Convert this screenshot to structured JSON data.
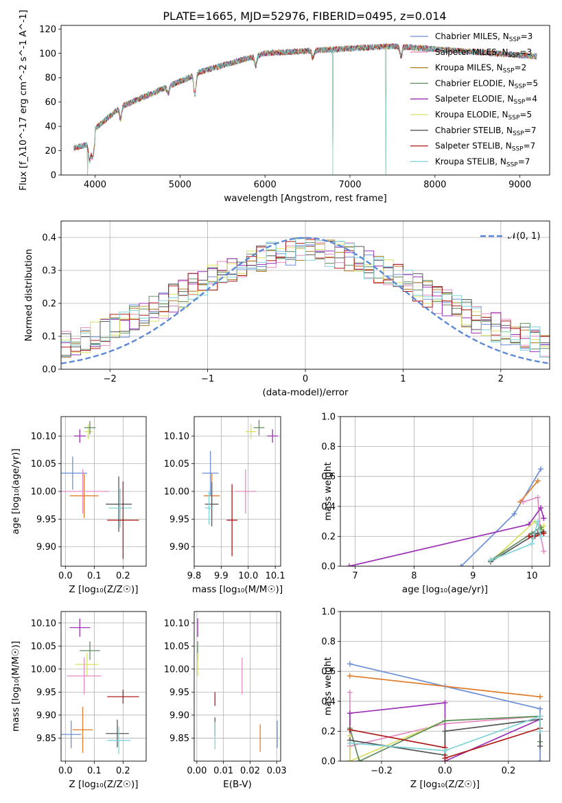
{
  "title": "PLATE=1665, MJD=52976, FIBERID=0495, z=0.014",
  "colors": {
    "blue": "#6a8fd8",
    "orange": "#e07b28",
    "pink": "#e58ac0",
    "olive": "#b0b030",
    "purple": "#9a2eb5",
    "yellowgreen": "#c6e040",
    "green": "#5f8c5f",
    "darkred": "#b01818",
    "cyan": "#7dd3d8",
    "gray": "#555555"
  },
  "models": [
    {
      "name": "Chabrier MILES",
      "nssp": "3",
      "color": "#6a8fd8"
    },
    {
      "name": "Salpeter MILES",
      "nssp": "3",
      "color": "#e58ac0"
    },
    {
      "name": "Kroupa MILES",
      "nssp": "2",
      "color": "#b07a20"
    },
    {
      "name": "Chabrier ELODIE",
      "nssp": "5",
      "color": "#5f8c5f"
    },
    {
      "name": "Salpeter ELODIE",
      "nssp": "4",
      "color": "#9a2eb5"
    },
    {
      "name": "Kroupa ELODIE",
      "nssp": "5",
      "color": "#d8e060"
    },
    {
      "name": "Chabrier STELIB",
      "nssp": "7",
      "color": "#555555"
    },
    {
      "name": "Salpeter STELIB",
      "nssp": "7",
      "color": "#b01818"
    },
    {
      "name": "Kroupa STELIB",
      "nssp": "7",
      "color": "#7dd3d8"
    }
  ],
  "chart_data": [
    {
      "id": "spectrum",
      "type": "line",
      "xlabel": "wavelength [Angstrom, rest frame]",
      "ylabel": "Flux [f_λ10^-17 erg cm^-2 s^-1 A^-1]",
      "xlim": [
        3600,
        9350
      ],
      "ylim": [
        0,
        123
      ],
      "xticks": [
        4000,
        5000,
        6000,
        7000,
        8000,
        9000
      ],
      "yticks": [
        0,
        20,
        40,
        60,
        80,
        100,
        120
      ],
      "x_start": 3750,
      "x_end": 9200,
      "dropouts": [
        3910,
        6800,
        7420
      ],
      "legend_loc": "upper right"
    },
    {
      "id": "residuals",
      "type": "histogram",
      "xlabel": "(data-model)/error",
      "ylabel": "Normed distribution",
      "xlim": [
        -2.5,
        2.5
      ],
      "ylim": [
        0,
        0.45
      ],
      "xticks": [
        -2,
        -1,
        0,
        1,
        2
      ],
      "yticks": [
        0.0,
        0.1,
        0.2,
        0.3,
        0.4
      ],
      "reference": {
        "label": "𝒩(0, 1)",
        "mean": 0,
        "sigma": 1,
        "peak": 0.399
      },
      "grid": true,
      "legend_loc": "upper right"
    },
    {
      "id": "age_vs_Z",
      "type": "errorbar",
      "xlabel": "Z [log₁₀(Z/Z☉)]",
      "ylabel": "age  [log₁₀(age/yr)]",
      "xlim": [
        -0.015,
        0.28
      ],
      "ylim": [
        9.865,
        10.135
      ],
      "xticks": [
        0.0,
        0.1,
        0.2
      ],
      "yticks": [
        9.9,
        9.95,
        10.0,
        10.05,
        10.1
      ],
      "points": [
        {
          "color": "#9a2eb5",
          "x": 0.05,
          "xerr": 0.02,
          "y": 10.1,
          "yerr": 0.012
        },
        {
          "color": "#d8e060",
          "x": 0.08,
          "xerr": 0.015,
          "y": 10.108,
          "yerr": 0.014
        },
        {
          "color": "#5f8c5f",
          "x": 0.085,
          "xerr": 0.02,
          "y": 10.115,
          "yerr": 0.012
        },
        {
          "color": "#6a8fd8",
          "x": 0.025,
          "xerr": 0.05,
          "y": 10.033,
          "yerr": 0.03
        },
        {
          "color": "#e07b28",
          "x": 0.065,
          "xerr": 0.05,
          "y": 9.992,
          "yerr": 0.04
        },
        {
          "color": "#e58ac0",
          "x": 0.06,
          "xerr": 0.09,
          "y": 10.0,
          "yerr": 0.04
        },
        {
          "color": "#555555",
          "x": 0.185,
          "xerr": 0.045,
          "y": 9.977,
          "yerr": 0.05
        },
        {
          "color": "#7dd3d8",
          "x": 0.19,
          "xerr": 0.04,
          "y": 9.97,
          "yerr": 0.035
        },
        {
          "color": "#b01818",
          "x": 0.2,
          "xerr": 0.055,
          "y": 9.948,
          "yerr": 0.07
        }
      ]
    },
    {
      "id": "age_vs_mass",
      "type": "errorbar",
      "xlabel": "mass [log₁₀(M/M☉)]",
      "xlim": [
        9.8,
        10.12
      ],
      "ylim": [
        9.865,
        10.135
      ],
      "xticks": [
        9.8,
        9.9,
        10.0,
        10.1
      ],
      "yticks": [
        9.9,
        9.95,
        10.0,
        10.05,
        10.1
      ],
      "points": [
        {
          "color": "#d8e060",
          "x": 10.01,
          "xerr": 0.02,
          "y": 10.108,
          "yerr": 0.014
        },
        {
          "color": "#5f8c5f",
          "x": 10.04,
          "xerr": 0.02,
          "y": 10.115,
          "yerr": 0.014
        },
        {
          "color": "#9a2eb5",
          "x": 10.09,
          "xerr": 0.02,
          "y": 10.1,
          "yerr": 0.012
        },
        {
          "color": "#6a8fd8",
          "x": 9.86,
          "xerr": 0.03,
          "y": 10.033,
          "yerr": 0.04
        },
        {
          "color": "#e07b28",
          "x": 9.865,
          "xerr": 0.03,
          "y": 9.992,
          "yerr": 0.04
        },
        {
          "color": "#555555",
          "x": 9.865,
          "xerr": 0.025,
          "y": 9.977,
          "yerr": 0.04
        },
        {
          "color": "#7dd3d8",
          "x": 9.855,
          "xerr": 0.015,
          "y": 9.97,
          "yerr": 0.03
        },
        {
          "color": "#e58ac0",
          "x": 9.99,
          "xerr": 0.04,
          "y": 10.0,
          "yerr": 0.04
        },
        {
          "color": "#b01818",
          "x": 9.94,
          "xerr": 0.02,
          "y": 9.948,
          "yerr": 0.065
        }
      ]
    },
    {
      "id": "massweight_vs_age",
      "type": "line",
      "xlabel": "age  [log₁₀(age/yr)]",
      "ylabel": "mass weight",
      "xlim": [
        6.75,
        10.3
      ],
      "ylim": [
        0,
        1.0
      ],
      "xticks": [
        7,
        8,
        9,
        10
      ],
      "yticks": [
        0.0,
        0.2,
        0.4,
        0.6,
        0.8,
        1.0
      ],
      "series": [
        {
          "color": "#6a8fd8",
          "x": [
            8.8,
            9.7,
            10.15
          ],
          "y": [
            0.0,
            0.35,
            0.65
          ]
        },
        {
          "color": "#e07b28",
          "x": [
            9.8,
            10.1
          ],
          "y": [
            0.43,
            0.57
          ]
        },
        {
          "color": "#e58ac0",
          "x": [
            9.85,
            10.1,
            10.15,
            10.2
          ],
          "y": [
            0.43,
            0.46,
            0.2,
            0.1
          ]
        },
        {
          "color": "#9a2eb5",
          "x": [
            6.9,
            9.95,
            10.15,
            10.2
          ],
          "y": [
            0.0,
            0.28,
            0.39,
            0.32
          ]
        },
        {
          "color": "#d8e060",
          "x": [
            9.3,
            10.05,
            10.15,
            10.2
          ],
          "y": [
            0.03,
            0.3,
            0.25,
            0.27
          ]
        },
        {
          "color": "#5f8c5f",
          "x": [
            9.3,
            10.0,
            10.15,
            10.2
          ],
          "y": [
            0.04,
            0.22,
            0.26,
            0.22
          ]
        },
        {
          "color": "#555555",
          "x": [
            9.3,
            10.0,
            10.1,
            10.2
          ],
          "y": [
            0.03,
            0.2,
            0.22,
            0.23
          ]
        },
        {
          "color": "#b01818",
          "x": [
            9.95,
            10.05,
            10.2
          ],
          "y": [
            0.2,
            0.2,
            0.22
          ]
        },
        {
          "color": "#7dd3d8",
          "x": [
            9.3,
            10.0,
            10.1,
            10.15
          ],
          "y": [
            0.04,
            0.15,
            0.3,
            0.2
          ]
        }
      ]
    },
    {
      "id": "mass_vs_Z",
      "type": "errorbar",
      "xlabel": "Z [log₁₀(Z/Z☉)]",
      "ylabel": "mass [log₁₀(M/M☉)]",
      "xlim": [
        -0.015,
        0.28
      ],
      "ylim": [
        9.8,
        10.125
      ],
      "xticks": [
        0.0,
        0.1,
        0.2
      ],
      "yticks": [
        9.85,
        9.9,
        9.95,
        10.0,
        10.05,
        10.1
      ],
      "points": [
        {
          "color": "#9a2eb5",
          "x": 0.05,
          "xerr": 0.035,
          "y": 10.09,
          "yerr": 0.02
        },
        {
          "color": "#5f8c5f",
          "x": 0.085,
          "xerr": 0.035,
          "y": 10.04,
          "yerr": 0.02
        },
        {
          "color": "#d8e060",
          "x": 0.075,
          "xerr": 0.04,
          "y": 10.01,
          "yerr": 0.025
        },
        {
          "color": "#e58ac0",
          "x": 0.065,
          "xerr": 0.06,
          "y": 9.985,
          "yerr": 0.04
        },
        {
          "color": "#b01818",
          "x": 0.2,
          "xerr": 0.055,
          "y": 9.94,
          "yerr": 0.015
        },
        {
          "color": "#6a8fd8",
          "x": 0.02,
          "xerr": 0.035,
          "y": 9.858,
          "yerr": 0.03
        },
        {
          "color": "#e07b28",
          "x": 0.06,
          "xerr": 0.035,
          "y": 9.868,
          "yerr": 0.05
        },
        {
          "color": "#555555",
          "x": 0.18,
          "xerr": 0.04,
          "y": 9.86,
          "yerr": 0.03
        },
        {
          "color": "#7dd3d8",
          "x": 0.185,
          "xerr": 0.04,
          "y": 9.845,
          "yerr": 0.03
        }
      ]
    },
    {
      "id": "mass_vs_EBV",
      "type": "errorbar",
      "xlabel": "E(B-V)",
      "xlim": [
        -0.001,
        0.0315
      ],
      "ylim": [
        9.8,
        10.125
      ],
      "xticks": [
        0.0,
        0.01,
        0.02,
        0.03
      ],
      "yticks": [
        9.85,
        9.9,
        9.95,
        10.0,
        10.05,
        10.1
      ],
      "points": [
        {
          "color": "#9a2eb5",
          "x": 0.0003,
          "xerr": 0,
          "y": 10.09,
          "yerr": 0.02
        },
        {
          "color": "#5f8c5f",
          "x": 0.0003,
          "xerr": 0,
          "y": 10.04,
          "yerr": 0.02
        },
        {
          "color": "#d8e060",
          "x": 0.0003,
          "xerr": 0,
          "y": 10.01,
          "yerr": 0.025
        },
        {
          "color": "#e58ac0",
          "x": 0.017,
          "xerr": 0,
          "y": 9.985,
          "yerr": 0.04
        },
        {
          "color": "#b01818",
          "x": 0.0068,
          "xerr": 0,
          "y": 9.935,
          "yerr": 0.015
        },
        {
          "color": "#555555",
          "x": 0.0068,
          "xerr": 0,
          "y": 9.875,
          "yerr": 0.02
        },
        {
          "color": "#7dd3d8",
          "x": 0.0068,
          "xerr": 0,
          "y": 9.855,
          "yerr": 0.03
        },
        {
          "color": "#e07b28",
          "x": 0.0238,
          "xerr": 0,
          "y": 9.85,
          "yerr": 0.03
        },
        {
          "color": "#6a8fd8",
          "x": 0.0302,
          "xerr": 0,
          "y": 9.858,
          "yerr": 0.03
        }
      ]
    },
    {
      "id": "massweight_vs_Z",
      "type": "line",
      "xlabel": "Z [log₁₀(Z/Z☉)]",
      "ylabel": "mass weight",
      "xlim": [
        -0.33,
        0.33
      ],
      "ylim": [
        0,
        1.0
      ],
      "xticks": [
        -0.2,
        0.0,
        0.2
      ],
      "yticks": [
        0.0,
        0.2,
        0.4,
        0.6,
        0.8,
        1.0
      ],
      "series": [
        {
          "color": "#6a8fd8",
          "x": [
            -0.3,
            0.0,
            0.3,
            0.3
          ],
          "y": [
            0.65,
            0.5,
            0.35,
            0.0
          ]
        },
        {
          "color": "#e07b28",
          "x": [
            -0.3,
            0.3
          ],
          "y": [
            0.57,
            0.43
          ]
        },
        {
          "color": "#e58ac0",
          "x": [
            -0.3,
            -0.3,
            0.0,
            0.3
          ],
          "y": [
            0.46,
            0.1,
            0.25,
            0.3
          ]
        },
        {
          "color": "#9a2eb5",
          "x": [
            -0.3,
            -0.3,
            0.0,
            0.0,
            0.3
          ],
          "y": [
            0.0,
            0.32,
            0.39,
            0.0,
            0.28
          ]
        },
        {
          "color": "#d8e060",
          "x": [
            -0.3,
            -0.3,
            0.0,
            0.3
          ],
          "y": [
            0.17,
            0.0,
            0.27,
            0.3
          ]
        },
        {
          "color": "#5f8c5f",
          "x": [
            -0.3,
            -0.27,
            0.0,
            0.3,
            0.3
          ],
          "y": [
            0.22,
            0.0,
            0.27,
            0.3,
            0.13
          ]
        },
        {
          "color": "#555555",
          "x": [
            -0.3,
            0.0,
            0.0,
            0.3,
            0.3
          ],
          "y": [
            0.14,
            0.04,
            0.2,
            0.28,
            0.1
          ]
        },
        {
          "color": "#b01818",
          "x": [
            -0.3,
            0.0,
            0.0,
            0.3
          ],
          "y": [
            0.21,
            0.09,
            0.02,
            0.22
          ]
        },
        {
          "color": "#7dd3d8",
          "x": [
            -0.3,
            0.0,
            0.3,
            0.3
          ],
          "y": [
            0.12,
            0.07,
            0.3,
            0.2
          ]
        }
      ]
    }
  ]
}
